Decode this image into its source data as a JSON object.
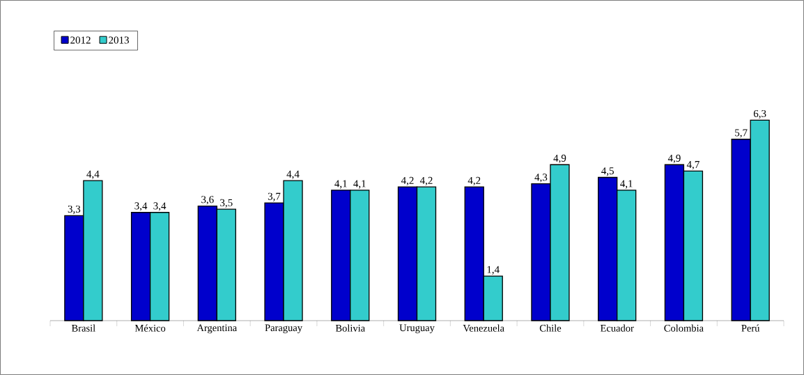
{
  "chart_data": {
    "type": "bar",
    "categories": [
      "Brasil",
      "México",
      "Argentina",
      "Paraguay",
      "Bolivia",
      "Uruguay",
      "Venezuela",
      "Chile",
      "Ecuador",
      "Colombia",
      "Perú"
    ],
    "series": [
      {
        "name": "2012",
        "color": "#0000cc",
        "values": [
          3.3,
          3.4,
          3.6,
          3.7,
          4.1,
          4.2,
          4.2,
          4.3,
          4.5,
          4.9,
          5.7
        ],
        "value_labels": [
          "3,3",
          "3,4",
          "3,6",
          "3,7",
          "4,1",
          "4,2",
          "4,2",
          "4,3",
          "4,5",
          "4,9",
          "5,7"
        ]
      },
      {
        "name": "2013",
        "color": "#33cccc",
        "values": [
          4.4,
          3.4,
          3.5,
          4.4,
          4.1,
          4.2,
          1.4,
          4.9,
          4.1,
          4.7,
          6.3
        ],
        "value_labels": [
          "4,4",
          "3,4",
          "3,5",
          "4,4",
          "4,1",
          "4,2",
          "1,4",
          "4,9",
          "4,1",
          "4,7",
          "6,3"
        ]
      }
    ],
    "legend": "top left",
    "grid": false
  }
}
